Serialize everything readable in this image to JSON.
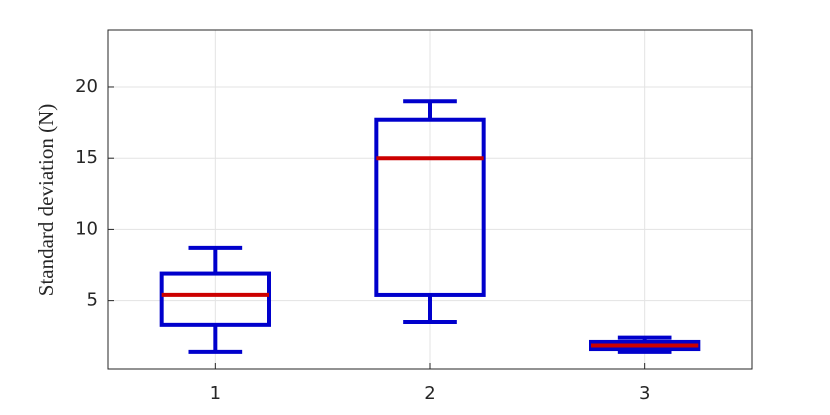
{
  "chart_data": {
    "type": "box",
    "y_label": "Standard deviation (N)",
    "categories": [
      "1",
      "2",
      "3"
    ],
    "min": [
      1.4,
      3.5,
      1.4
    ],
    "q1": [
      3.3,
      5.4,
      1.6
    ],
    "median": [
      5.4,
      15.0,
      1.85
    ],
    "q3": [
      6.9,
      17.7,
      2.1
    ],
    "max": [
      8.7,
      19.0,
      2.4
    ],
    "box_color": "#0000cc",
    "median_color": "#cc0000",
    "ylim": [
      0.2,
      24
    ],
    "yticks": [
      5,
      10,
      15,
      20
    ],
    "grid": true
  }
}
